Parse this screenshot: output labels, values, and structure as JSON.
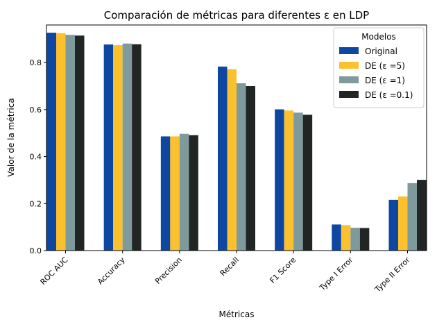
{
  "chart_data": {
    "type": "bar",
    "title": "Comparación de métricas para diferentes ε en LDP",
    "xlabel": "Métricas",
    "ylabel": "Valor de la métrica",
    "categories": [
      "ROC AUC",
      "Accuracy",
      "Precision",
      "Recall",
      "F1 Score",
      "Type I Error",
      "Type II Error"
    ],
    "series": [
      {
        "name": "Original",
        "color": "#0d47a1",
        "values": [
          0.927,
          0.877,
          0.486,
          0.783,
          0.601,
          0.111,
          0.216
        ]
      },
      {
        "name": "DE (ε =5)",
        "color": "#fbc02d",
        "values": [
          0.925,
          0.874,
          0.486,
          0.772,
          0.596,
          0.108,
          0.23
        ]
      },
      {
        "name": "DE (ε =1)",
        "color": "#7f9a9c",
        "values": [
          0.918,
          0.881,
          0.497,
          0.712,
          0.587,
          0.097,
          0.287
        ]
      },
      {
        "name": "DE (ε =0.1)",
        "color": "#212523",
        "values": [
          0.915,
          0.878,
          0.491,
          0.7,
          0.578,
          0.096,
          0.301
        ]
      }
    ],
    "ylim": [
      0,
      0.96
    ],
    "yticks": [
      "0.0",
      "0.2",
      "0.4",
      "0.6",
      "0.8"
    ],
    "legend": {
      "title": "Modelos",
      "position": "top-right"
    },
    "grid": false
  }
}
